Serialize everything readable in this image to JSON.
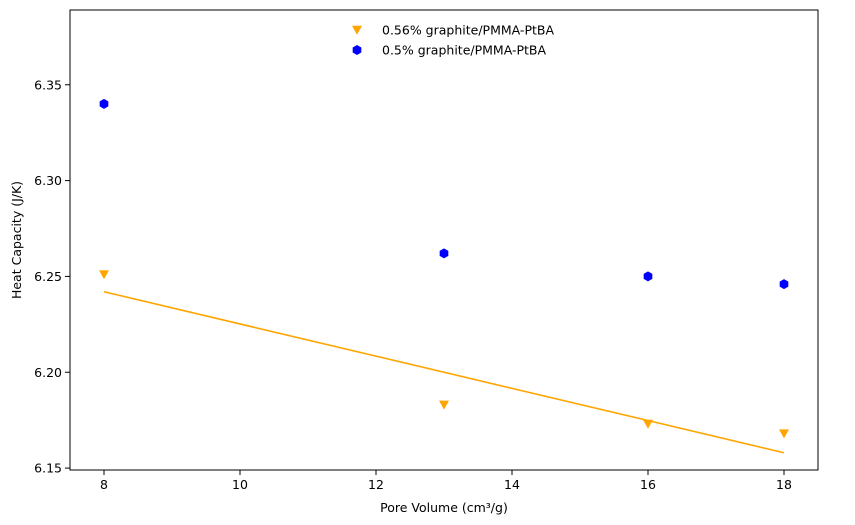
{
  "chart_data": {
    "type": "scatter",
    "title": "",
    "xlabel": "Pore Volume (cm³/g)",
    "ylabel": "Heat Capacity (J/K)",
    "xlim": [
      7.5,
      18.5
    ],
    "ylim": [
      6.149,
      6.389
    ],
    "xticks": [
      8,
      10,
      12,
      14,
      16,
      18
    ],
    "yticks": [
      6.15,
      6.2,
      6.25,
      6.3,
      6.35
    ],
    "xtick_labels": [
      "8",
      "10",
      "12",
      "14",
      "16",
      "18"
    ],
    "ytick_labels": [
      "6.15",
      "6.20",
      "6.25",
      "6.30",
      "6.35"
    ],
    "grid": false,
    "legend_position": "upper-center",
    "series": [
      {
        "name": "0.56% graphite/PMMA-PtBA",
        "marker": "triangle-down",
        "color": "#FFA500",
        "x": [
          8,
          13,
          16,
          18
        ],
        "y": [
          6.251,
          6.183,
          6.173,
          6.168
        ]
      },
      {
        "name": "0.5% graphite/PMMA-PtBA",
        "marker": "hexagon",
        "color": "#0000FF",
        "x": [
          8,
          13,
          16,
          18
        ],
        "y": [
          6.34,
          6.262,
          6.25,
          6.246
        ]
      }
    ],
    "fit_line": {
      "color": "#FFA500",
      "x": [
        8,
        18
      ],
      "y": [
        6.242,
        6.158
      ]
    }
  }
}
